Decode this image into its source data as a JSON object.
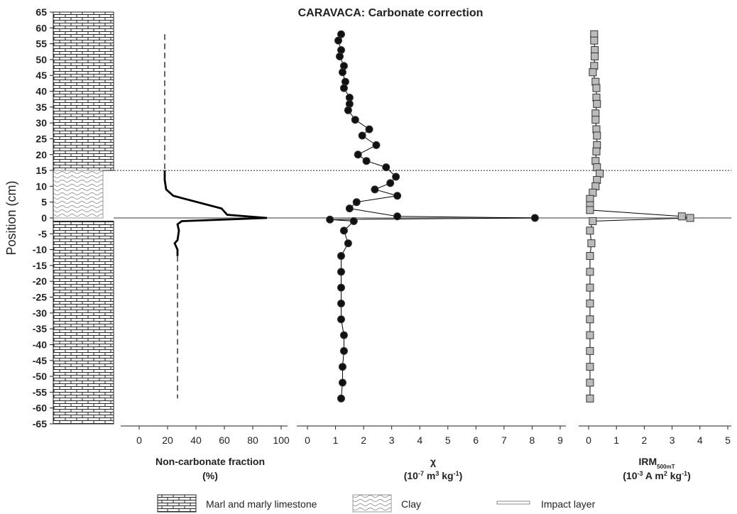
{
  "title": "CARAVACA: Carbonate correction",
  "y_axis": {
    "label": "Position (cm)",
    "ylim": [
      -65,
      65
    ],
    "yticks": [
      65,
      60,
      55,
      50,
      45,
      40,
      35,
      30,
      25,
      20,
      15,
      10,
      5,
      0,
      -5,
      -10,
      -15,
      -20,
      -25,
      -30,
      -35,
      -40,
      -45,
      -50,
      -55,
      -60,
      -65
    ]
  },
  "lithology": {
    "marl_ranges": [
      [
        15,
        65
      ],
      [
        -65,
        -1
      ]
    ],
    "clay_range": [
      0,
      15
    ],
    "boundary": 15,
    "impact_layer": 0
  },
  "legend": [
    "Marl and marly limestone",
    "Clay",
    "Impact layer"
  ],
  "chart_data": [
    {
      "type": "line",
      "xlabel": [
        [
          {
            "text": "Non-carbonate fraction"
          }
        ],
        [
          {
            "text": "(%)"
          }
        ]
      ],
      "xlim": [
        0,
        100
      ],
      "xticks": [
        0,
        20,
        40,
        60,
        80,
        100
      ],
      "series": [
        {
          "dash": true,
          "color": "#000000",
          "x": [
            18,
            18
          ],
          "y": [
            58,
            15
          ]
        },
        {
          "dash": false,
          "color": "#000000",
          "x": [
            18,
            18,
            19,
            24,
            58,
            62,
            90,
            30,
            27,
            28,
            27,
            25,
            27,
            27
          ],
          "y": [
            15,
            12,
            9,
            7,
            3,
            1,
            0,
            -1,
            -2,
            -4,
            -7,
            -8,
            -10,
            -12
          ]
        },
        {
          "dash": true,
          "color": "#000000",
          "x": [
            27,
            27
          ],
          "y": [
            -12,
            -57
          ]
        }
      ]
    },
    {
      "type": "scatter-line",
      "marker": "circle",
      "xlabel": [
        [
          {
            "text": "χ"
          }
        ],
        [
          {
            "text": "(10"
          },
          {
            "text": "-7",
            "sup": true
          },
          {
            "text": " m"
          },
          {
            "text": "3",
            "sup": true
          },
          {
            "text": " kg"
          },
          {
            "text": "-1",
            "sup": true
          },
          {
            "text": ")"
          }
        ]
      ],
      "xlim": [
        0,
        9
      ],
      "xticks": [
        0,
        1,
        2,
        3,
        4,
        5,
        6,
        7,
        8,
        9
      ],
      "series": [
        {
          "color": "#000000",
          "fill": "#111111",
          "x": [
            1.2,
            1.1,
            1.2,
            1.15,
            1.3,
            1.25,
            1.35,
            1.3,
            1.5,
            1.5,
            1.45,
            1.7,
            2.2,
            1.95,
            2.45,
            1.8,
            2.1,
            2.8,
            3.15,
            2.95,
            2.4,
            3.2,
            1.75,
            1.5,
            3.2,
            8.1,
            0.8,
            1.65,
            1.3,
            1.45,
            1.2,
            1.2,
            1.2,
            1.2,
            1.2,
            1.3,
            1.3,
            1.25,
            1.25,
            1.2
          ],
          "y": [
            58,
            56,
            53,
            51,
            48,
            46,
            43,
            41,
            38,
            36,
            34,
            31,
            28,
            26,
            23,
            20,
            18,
            16,
            13,
            11,
            9,
            7,
            5,
            3,
            0.5,
            0,
            -0.5,
            -1,
            -4,
            -8,
            -12,
            -17,
            -22,
            -27,
            -32,
            -37,
            -42,
            -47,
            -52,
            -57
          ]
        }
      ]
    },
    {
      "type": "scatter-line",
      "marker": "square",
      "xlabel": [
        [
          {
            "text": "IRM"
          },
          {
            "text": "500mT",
            "sub": true
          }
        ],
        [
          {
            "text": "(10"
          },
          {
            "text": "-3",
            "sup": true
          },
          {
            "text": " A m"
          },
          {
            "text": "2",
            "sup": true
          },
          {
            "text": " kg"
          },
          {
            "text": "-1",
            "sup": true
          },
          {
            "text": ")"
          }
        ]
      ],
      "xlim": [
        0,
        5
      ],
      "xticks": [
        0,
        1,
        2,
        3,
        4,
        5
      ],
      "series": [
        {
          "color": "#000000",
          "fill": "#bbbbbb",
          "x": [
            0.2,
            0.2,
            0.22,
            0.22,
            0.2,
            0.15,
            0.25,
            0.28,
            0.28,
            0.3,
            0.25,
            0.25,
            0.28,
            0.3,
            0.3,
            0.28,
            0.25,
            0.3,
            0.4,
            0.3,
            0.25,
            0.15,
            0.05,
            0.05,
            0.05,
            3.35,
            3.65,
            0.15,
            0.05,
            0.1,
            0.05,
            0.05,
            0.05,
            0.05,
            0.05,
            0.05,
            0.05,
            0.05,
            0.05,
            0.05
          ],
          "y": [
            58,
            56,
            53,
            51,
            48,
            46,
            43,
            41,
            38,
            36,
            33,
            31,
            28,
            26,
            23,
            21,
            18,
            16,
            14,
            12,
            10,
            8,
            6,
            4,
            2.5,
            0.5,
            0,
            -1,
            -4,
            -8,
            -12,
            -17,
            -22,
            -27,
            -32,
            -37,
            -42,
            -47,
            -52,
            -57
          ]
        }
      ]
    }
  ]
}
